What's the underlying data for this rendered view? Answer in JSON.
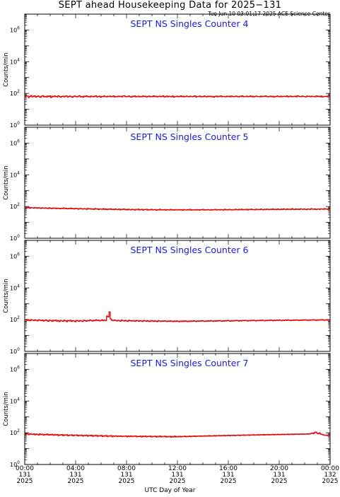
{
  "title": "SEPT ahead Housekeeping Data for 2025−131",
  "timestamp": "Tue Jun 10 03:01:17 2025 ACE Science Center",
  "xlabel": "UTC Day of Year",
  "colors": {
    "data": "#e00000",
    "panel_title": "#1a1adc",
    "axes": "#000000"
  },
  "chart_data": [
    {
      "type": "line",
      "title": "SEPT NS Singles Counter 4",
      "ylabel": "Counts/min",
      "yscale": "log",
      "ylim": [
        1,
        10000000
      ],
      "yticks": [
        {
          "base": "10",
          "exp": "0"
        },
        {
          "base": "10",
          "exp": "2"
        },
        {
          "base": "10",
          "exp": "4"
        },
        {
          "base": "10",
          "exp": "6"
        }
      ],
      "series": [
        {
          "values": [
            62,
            70,
            68,
            55,
            64,
            73,
            60,
            66,
            71,
            58,
            64,
            69,
            62,
            57,
            67,
            72,
            61,
            65,
            59,
            68,
            63,
            70,
            56,
            66,
            62,
            69,
            64,
            60,
            71,
            65,
            58,
            63,
            67,
            61,
            66,
            70,
            59,
            64,
            68,
            62,
            57,
            65,
            69,
            63,
            60,
            66,
            72,
            61,
            64,
            58,
            67,
            63,
            70,
            62,
            65,
            59,
            68,
            64,
            61,
            66,
            71,
            60,
            63,
            67,
            58,
            65,
            62,
            69,
            64,
            60,
            66,
            63,
            68,
            61,
            65,
            70,
            59,
            64,
            62,
            67,
            63,
            66,
            60,
            68,
            72,
            64,
            61,
            65,
            69,
            62,
            58,
            66,
            63,
            70,
            61,
            64,
            67,
            60,
            65,
            62,
            69,
            63,
            66,
            59,
            64,
            68,
            61,
            65,
            62,
            70,
            63,
            66,
            60,
            64,
            67,
            62,
            65,
            71,
            59,
            63,
            68,
            61,
            66,
            64,
            62,
            69,
            58,
            65,
            63,
            67,
            61,
            64,
            70,
            62,
            66,
            60,
            65,
            68,
            63,
            61,
            67,
            64,
            62,
            66,
            70,
            59,
            64,
            63,
            68,
            61,
            65,
            62,
            69,
            64,
            60,
            66,
            63,
            67,
            62,
            65,
            58,
            64,
            68,
            61,
            66,
            63,
            70,
            62,
            65,
            64,
            60,
            67,
            63,
            66,
            61,
            69,
            64,
            62,
            65,
            68,
            63,
            60,
            66,
            64,
            71,
            62,
            65,
            63,
            67,
            61,
            64,
            69,
            62,
            66,
            60,
            65,
            68,
            63,
            64,
            61,
            67,
            62,
            66,
            65,
            70,
            63,
            61,
            64,
            68,
            62,
            66,
            59,
            65,
            63,
            69,
            64,
            61,
            67,
            62,
            65,
            66,
            63,
            70,
            60,
            64,
            68,
            62,
            65,
            63,
            67,
            61,
            72,
            66,
            64,
            62,
            69,
            65,
            63,
            60,
            68,
            64,
            66,
            62,
            67,
            63,
            65,
            61,
            70,
            64,
            66,
            62,
            68,
            59,
            64,
            65,
            63,
            67,
            61,
            62
          ]
        }
      ],
      "xlim": [
        0,
        24
      ]
    },
    {
      "type": "line",
      "title": "SEPT NS Singles Counter 5",
      "ylabel": "Counts/min",
      "yscale": "log",
      "ylim": [
        1,
        10000000
      ],
      "yticks": [
        {
          "base": "10",
          "exp": "0"
        },
        {
          "base": "10",
          "exp": "2"
        },
        {
          "base": "10",
          "exp": "4"
        },
        {
          "base": "10",
          "exp": "6"
        }
      ],
      "series": [
        {
          "values": [
            85,
            88,
            82,
            90,
            79,
            86,
            84,
            80,
            87,
            83,
            78,
            85,
            81,
            76,
            84,
            80,
            77,
            82,
            79,
            75,
            83,
            78,
            74,
            81,
            77,
            80,
            73,
            79,
            76,
            72,
            78,
            75,
            81,
            74,
            77,
            71,
            76,
            73,
            79,
            72,
            75,
            70,
            77,
            74,
            68,
            73,
            76,
            71,
            69,
            74,
            72,
            67,
            75,
            70,
            73,
            68,
            71,
            66,
            74,
            69,
            72,
            65,
            70,
            68,
            67,
            73,
            66,
            71,
            64,
            69,
            67,
            72,
            65,
            68,
            63,
            70,
            66,
            64,
            69,
            62,
            67,
            65,
            71,
            63,
            66,
            61,
            68,
            64,
            62,
            67,
            65,
            60,
            66,
            63,
            68,
            61,
            64,
            66,
            59,
            65,
            63,
            67,
            60,
            64,
            62,
            66,
            61,
            63,
            65,
            58,
            64,
            62,
            67,
            60,
            63,
            61,
            65,
            59,
            64,
            62,
            60,
            66,
            61,
            63,
            59,
            65,
            62,
            60,
            64,
            61,
            63,
            58,
            65,
            62,
            60,
            64,
            61,
            66,
            59,
            63,
            62,
            60,
            65,
            61,
            63,
            59,
            64,
            62,
            66,
            60,
            63,
            61,
            65,
            62,
            59,
            64,
            61,
            63,
            66,
            60,
            62,
            64,
            61,
            65,
            63,
            60,
            67,
            62,
            64,
            61,
            66,
            63,
            60,
            65,
            62,
            67,
            64,
            61,
            66,
            63,
            68,
            62,
            65,
            63,
            67,
            61,
            66,
            64,
            69,
            63,
            65,
            62,
            68,
            64,
            66,
            63,
            70,
            65,
            62,
            67,
            64,
            69,
            66,
            63,
            68,
            65,
            71,
            64,
            67,
            63,
            70,
            66,
            64,
            69,
            65,
            72,
            67,
            64,
            70,
            66,
            68,
            65,
            73,
            67,
            64,
            70,
            66,
            69,
            65,
            72,
            68,
            66,
            71,
            67,
            64,
            70,
            68,
            66,
            73,
            69,
            67,
            71,
            65,
            68,
            70,
            66,
            72,
            69,
            67,
            74,
            68,
            70,
            66,
            73
          ]
        }
      ],
      "xlim": [
        0,
        24
      ]
    },
    {
      "type": "line",
      "title": "SEPT NS Singles Counter 6",
      "ylabel": "Counts/min",
      "yscale": "log",
      "ylim": [
        1,
        10000000
      ],
      "yticks": [
        {
          "base": "10",
          "exp": "0"
        },
        {
          "base": "10",
          "exp": "2"
        },
        {
          "base": "10",
          "exp": "4"
        },
        {
          "base": "10",
          "exp": "6"
        }
      ],
      "series": [
        {
          "values": [
            95,
            102,
            90,
            98,
            85,
            100,
            93,
            88,
            97,
            91,
            84,
            99,
            92,
            87,
            95,
            82,
            90,
            96,
            86,
            80,
            93,
            89,
            78,
            91,
            85,
            94,
            81,
            88,
            76,
            90,
            84,
            79,
            92,
            86,
            75,
            89,
            83,
            91,
            78,
            87,
            82,
            74,
            90,
            85,
            79,
            88,
            83,
            77,
            92,
            86,
            80,
            89,
            84,
            95,
            88,
            82,
            91,
            86,
            99,
            87,
            93,
            84,
            90,
            98,
            86,
            92,
            88,
            170,
            150,
            310,
            110,
            92,
            86,
            95,
            89,
            83,
            91,
            85,
            80,
            94,
            87,
            82,
            90,
            84,
            78,
            92,
            86,
            81,
            88,
            83,
            79,
            90,
            85,
            80,
            87,
            82,
            77,
            89,
            84,
            79,
            86,
            81,
            76,
            88,
            83,
            78,
            85,
            80,
            75,
            87,
            82,
            77,
            84,
            79,
            86,
            81,
            76,
            83,
            78,
            85,
            80,
            75,
            82,
            77,
            84,
            79,
            74,
            81,
            76,
            83,
            78,
            85,
            80,
            75,
            82,
            77,
            84,
            79,
            86,
            81,
            76,
            83,
            78,
            85,
            80,
            87,
            82,
            77,
            84,
            79,
            86,
            81,
            88,
            83,
            78,
            85,
            80,
            87,
            82,
            89,
            84,
            79,
            86,
            81,
            88,
            83,
            90,
            85,
            80,
            87,
            82,
            89,
            84,
            91,
            86,
            81,
            88,
            83,
            90,
            85,
            92,
            87,
            82,
            89,
            84,
            91,
            86,
            93,
            88,
            83,
            90,
            85,
            92,
            87,
            94,
            89,
            84,
            91,
            86,
            93,
            88,
            95,
            90,
            85,
            92,
            87,
            94,
            89,
            96,
            91,
            86,
            93,
            88,
            95,
            90,
            97,
            92,
            87,
            94,
            89,
            96,
            91,
            98,
            93,
            88,
            95,
            90,
            97,
            92,
            99,
            94,
            89,
            96,
            91,
            98,
            93,
            100,
            95,
            90,
            97,
            92,
            99,
            94,
            101,
            96,
            91,
            98,
            93,
            100,
            95
          ]
        }
      ],
      "xlim": [
        0,
        24
      ]
    },
    {
      "type": "line",
      "title": "SEPT NS Singles Counter 7",
      "ylabel": "Counts/min",
      "yscale": "log",
      "ylim": [
        1,
        10000000
      ],
      "yticks": [
        {
          "base": "10",
          "exp": "0"
        },
        {
          "base": "10",
          "exp": "2"
        },
        {
          "base": "10",
          "exp": "4"
        },
        {
          "base": "10",
          "exp": "6"
        }
      ],
      "series": [
        {
          "values": [
            80,
            90,
            84,
            76,
            88,
            82,
            78,
            86,
            74,
            83,
            79,
            72,
            85,
            77,
            81,
            70,
            79,
            75,
            83,
            71,
            77,
            73,
            80,
            69,
            76,
            72,
            78,
            67,
            74,
            71,
            77,
            66,
            73,
            70,
            75,
            65,
            72,
            69,
            74,
            64,
            71,
            68,
            73,
            63,
            70,
            67,
            72,
            62,
            69,
            66,
            71,
            61,
            68,
            65,
            70,
            60,
            67,
            64,
            69,
            59,
            66,
            63,
            68,
            58,
            65,
            62,
            67,
            57,
            64,
            61,
            66,
            56,
            63,
            60,
            65,
            58,
            62,
            59,
            64,
            57,
            61,
            60,
            63,
            56,
            62,
            58,
            64,
            57,
            61,
            59,
            63,
            56,
            60,
            58,
            62,
            55,
            61,
            57,
            63,
            56,
            60,
            58,
            62,
            55,
            59,
            57,
            61,
            54,
            60,
            56,
            62,
            55,
            59,
            57,
            61,
            54,
            58,
            56,
            60,
            53,
            59,
            55,
            61,
            54,
            58,
            56,
            60,
            55,
            59,
            57,
            61,
            56,
            60,
            58,
            62,
            57,
            61,
            59,
            63,
            58,
            62,
            60,
            64,
            59,
            63,
            61,
            65,
            60,
            64,
            62,
            66,
            61,
            65,
            63,
            67,
            62,
            66,
            64,
            68,
            63,
            67,
            65,
            69,
            64,
            68,
            66,
            70,
            65,
            69,
            67,
            71,
            66,
            70,
            68,
            72,
            67,
            71,
            69,
            73,
            68,
            72,
            70,
            74,
            69,
            73,
            71,
            75,
            70,
            74,
            72,
            76,
            71,
            75,
            73,
            77,
            72,
            76,
            74,
            78,
            73,
            77,
            75,
            79,
            74,
            78,
            76,
            80,
            75,
            79,
            77,
            81,
            76,
            80,
            78,
            82,
            77,
            81,
            79,
            83,
            78,
            82,
            80,
            84,
            79,
            83,
            81,
            85,
            80,
            84,
            82,
            86,
            81,
            85,
            90,
            96,
            88,
            104,
            110,
            94,
            86,
            99,
            82,
            78,
            74,
            70,
            68,
            72,
            66,
            64
          ]
        }
      ],
      "xlim": [
        0,
        24
      ]
    }
  ],
  "xticks": [
    {
      "time": "00:00",
      "day": "131",
      "year": "2025"
    },
    {
      "time": "04:00",
      "day": "131",
      "year": "2025"
    },
    {
      "time": "08:00",
      "day": "131",
      "year": "2025"
    },
    {
      "time": "12:00",
      "day": "131",
      "year": "2025"
    },
    {
      "time": "16:00",
      "day": "131",
      "year": "2025"
    },
    {
      "time": "20:00",
      "day": "131",
      "year": "2025"
    },
    {
      "time": "00:00",
      "day": "132",
      "year": "2025"
    }
  ]
}
